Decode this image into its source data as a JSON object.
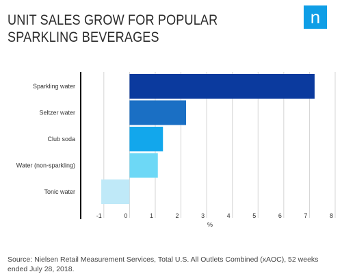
{
  "header": {
    "title": "Unit sales grow for popular sparkling beverages",
    "logo_letter": "n",
    "logo_color": "#0f9ee6"
  },
  "chart_data": {
    "type": "bar",
    "orientation": "horizontal",
    "title": "Unit sales grow for popular sparkling beverages",
    "categories": [
      "Sparkling water",
      "Seltzer water",
      "Club soda",
      "Water (non-sparkling)",
      "Tonic water"
    ],
    "values": [
      7.2,
      2.2,
      1.3,
      1.1,
      -1.1
    ],
    "colors": [
      "#0b3a9e",
      "#1a6fc4",
      "#12a7ec",
      "#6dd8f6",
      "#bfe9f8"
    ],
    "xlabel": "%",
    "xlim": [
      -1.9,
      8
    ],
    "xticks": [
      -1,
      0,
      1,
      2,
      3,
      4,
      5,
      6,
      7,
      8
    ],
    "grid": true
  },
  "footer": {
    "source": "Source: Nielsen Retail Measurement Services, Total U.S. All Outlets Combined (xAOC), 52 weeks ended July 28, 2018."
  }
}
